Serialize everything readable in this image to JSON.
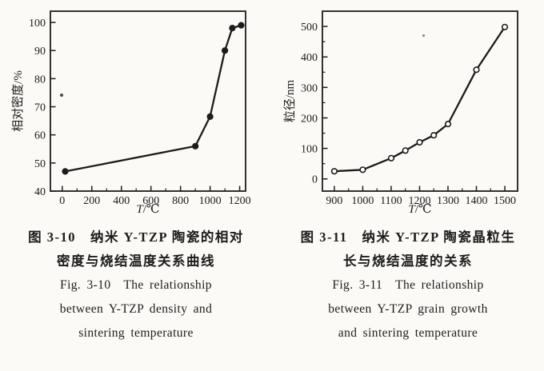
{
  "page": {
    "background": "#fbfaf7",
    "ink": "#1c1c1c"
  },
  "figures": [
    {
      "id": "fig-3-10",
      "caption_lines": [
        "图 3-10　纳米 Y-TZP 陶瓷的相对",
        "密度与烧结温度关系曲线",
        "Fig. 3-10　The relationship",
        "between Y-TZP density and",
        "sintering temperature"
      ]
    },
    {
      "id": "fig-3-11",
      "caption_lines": [
        "图 3-11　纳米 Y-TZP 陶瓷晶粒生",
        "长与烧结温度的关系",
        "Fig. 3-11　The relationship",
        "between Y-TZP grain growth",
        "and sintering temperature"
      ]
    }
  ],
  "chart_data": [
    {
      "type": "line",
      "title": "图 3-10 纳米 Y-TZP 陶瓷的相对密度与烧结温度关系曲线 (Fig. 3-10 The relationship between Y-TZP density and sintering temperature)",
      "xlabel": "T/℃",
      "ylabel": "相对密度/%",
      "x": [
        20,
        900,
        1000,
        1100,
        1150,
        1210
      ],
      "y": [
        47,
        56,
        66.5,
        90,
        98,
        99
      ],
      "xticks": [
        0,
        200,
        400,
        600,
        800,
        1000,
        1200
      ],
      "yticks": [
        40,
        50,
        60,
        70,
        80,
        90,
        100
      ],
      "x_minor_step": 100,
      "y_minor_step": null,
      "xlim": [
        -80,
        1240
      ],
      "ylim": [
        40,
        104
      ],
      "marker": "filled-circle",
      "grid": false,
      "legend": "none",
      "line_color": "#1c1c1c"
    },
    {
      "type": "line",
      "title": "图 3-11 纳米 Y-TZP 陶瓷晶粒生长与烧结温度的关系 (Fig. 3-11 The relationship between Y-TZP grain growth and sintering temperature)",
      "xlabel": "T/℃",
      "ylabel": "粒径/nm",
      "x": [
        900,
        1000,
        1100,
        1150,
        1200,
        1250,
        1300,
        1400,
        1500
      ],
      "y": [
        25,
        30,
        68,
        93,
        120,
        143,
        180,
        358,
        498
      ],
      "xticks": [
        900,
        1000,
        1100,
        1200,
        1300,
        1400,
        1500
      ],
      "yticks": [
        0,
        100,
        200,
        300,
        400,
        500
      ],
      "x_minor_step": 50,
      "y_minor_step": 50,
      "xlim": [
        858,
        1545
      ],
      "ylim": [
        -40,
        550
      ],
      "marker": "open-circle",
      "grid": false,
      "legend": "none",
      "line_color": "#1c1c1c"
    }
  ]
}
